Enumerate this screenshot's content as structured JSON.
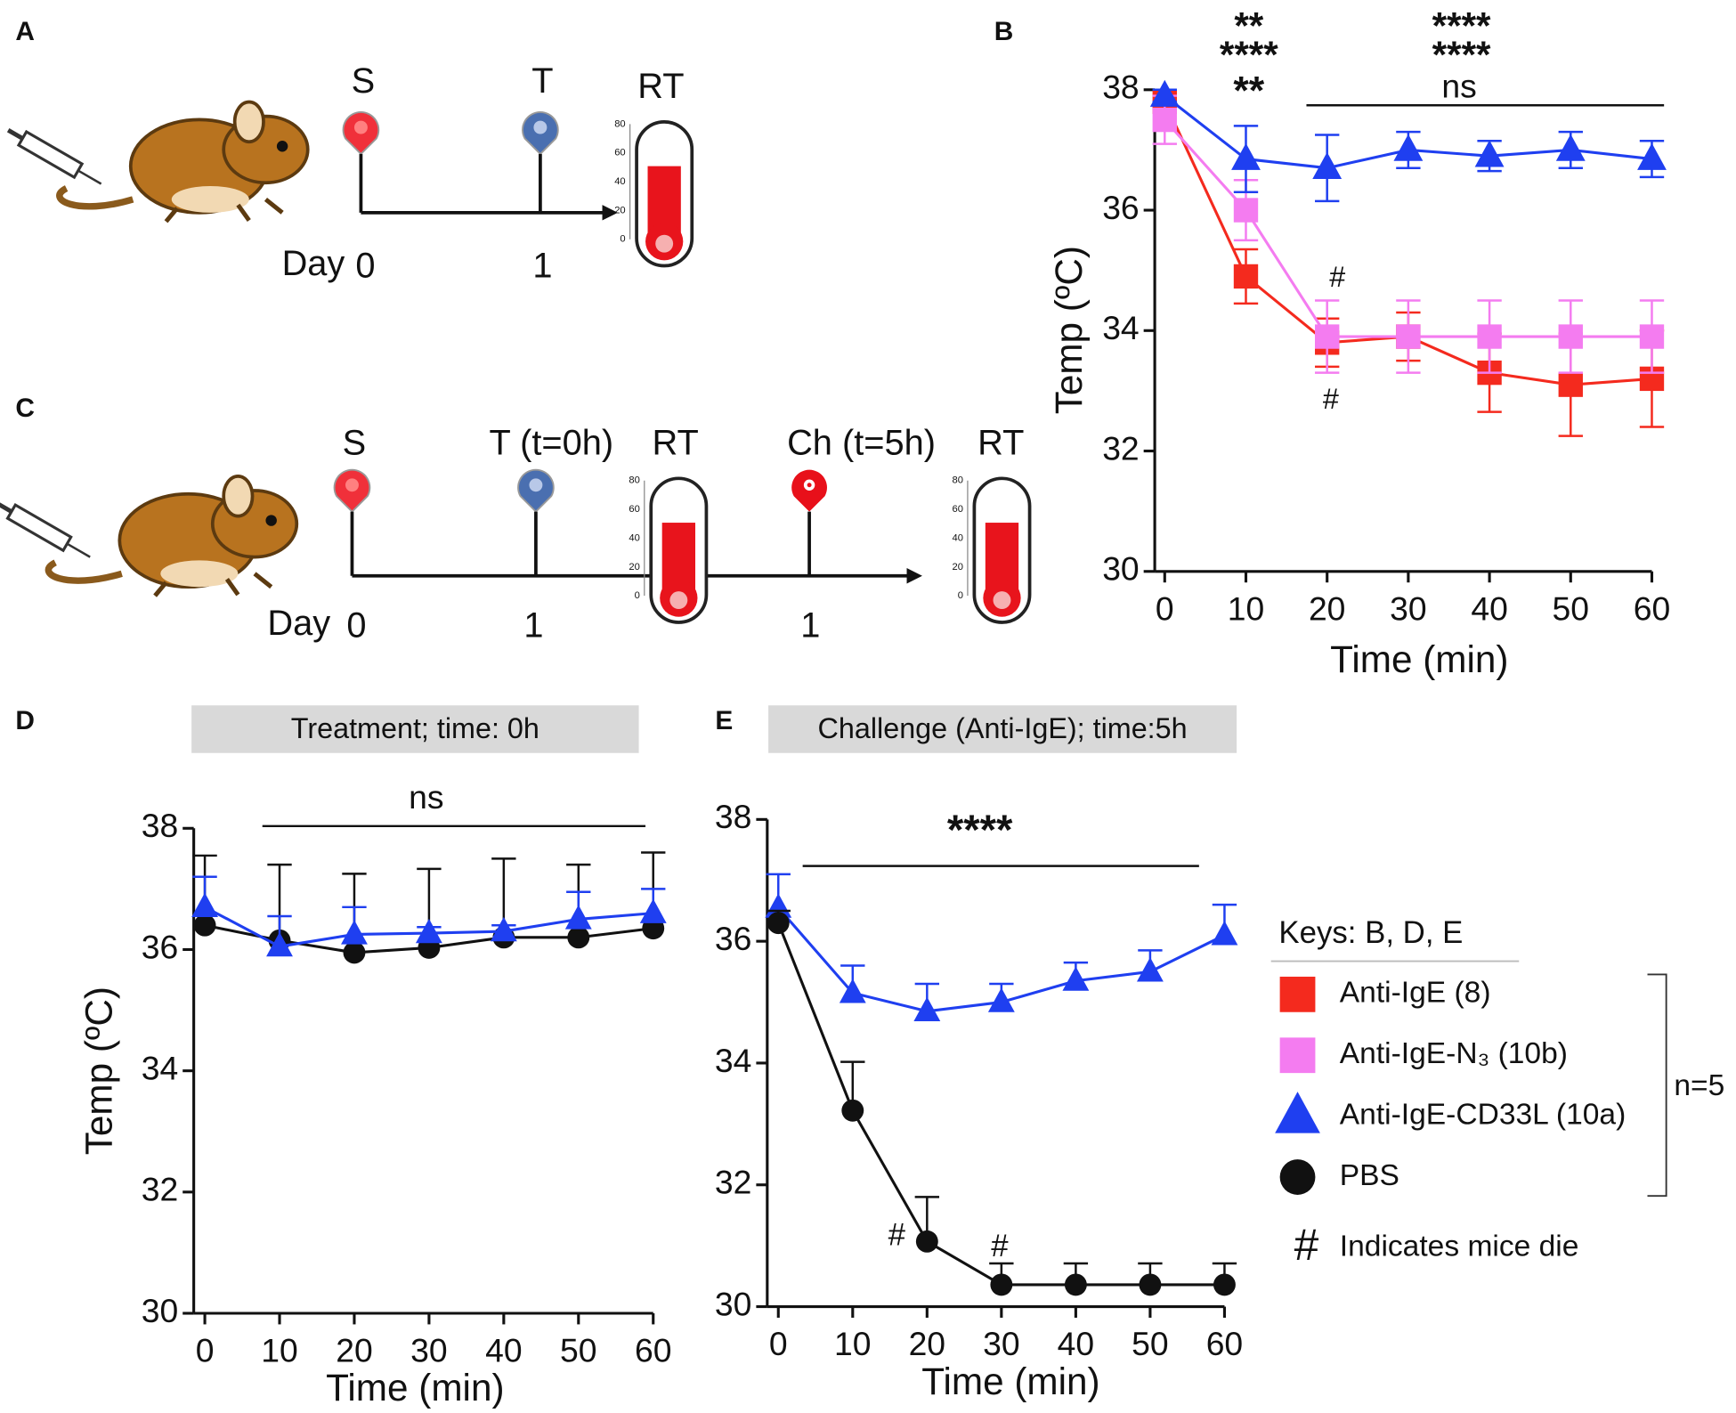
{
  "panel_labels": [
    "A",
    "B",
    "C",
    "D",
    "E"
  ],
  "schematics": {
    "a": {
      "labels": [
        "S",
        "T",
        "RT"
      ],
      "day_label": "Day",
      "days": [
        "0",
        "1"
      ]
    },
    "c": {
      "labels": [
        "S",
        "T (t=0h)",
        "RT",
        "Ch (t=5h)",
        "RT"
      ],
      "day_label": "Day",
      "days": [
        "0",
        "1",
        "1"
      ]
    },
    "thermometer_scale": [
      "80",
      "60",
      "40",
      "20",
      "0"
    ]
  },
  "legend": {
    "title": "Keys: B, D, E",
    "n_label": "n=5",
    "note_symbol": "#",
    "note": "Indicates mice die"
  },
  "chart_data": [
    {
      "type": "line",
      "x_label": "Time (min)",
      "y_label": "Temp (ºC)",
      "x": [
        0,
        10,
        20,
        30,
        40,
        50,
        60
      ],
      "xlim": [
        0,
        60
      ],
      "xticks": [
        0,
        10,
        20,
        30,
        40,
        50,
        60
      ],
      "ylim": [
        30,
        38
      ],
      "yticks": [
        30,
        32,
        34,
        36,
        38
      ],
      "error_direction": "both",
      "series": [
        {
          "name": "Anti-IgE (8)",
          "color": "#f42a1e",
          "marker": "square",
          "values": [
            37.8,
            34.9,
            33.8,
            33.9,
            33.3,
            33.1,
            33.2
          ],
          "errors": [
            0.1,
            0.45,
            0.4,
            0.4,
            0.65,
            0.85,
            0.8
          ]
        },
        {
          "name": "Anti-IgE-N₃ (10b)",
          "color": "#f47cf0",
          "marker": "square",
          "values": [
            37.5,
            36.0,
            33.9,
            33.9,
            33.9,
            33.9,
            33.9
          ],
          "errors": [
            0.4,
            0.5,
            0.6,
            0.6,
            0.6,
            0.6,
            0.6
          ]
        },
        {
          "name": "Anti-IgE-CD33L (10a)",
          "color": "#1f3ff0",
          "marker": "triangle",
          "values": [
            37.9,
            36.85,
            36.7,
            37.0,
            36.9,
            37.0,
            36.85
          ],
          "errors": [
            0.1,
            0.55,
            0.55,
            0.3,
            0.25,
            0.3,
            0.3
          ]
        }
      ],
      "annotations": [
        {
          "text": "**",
          "color": "#f42a1e"
        },
        {
          "text": "****",
          "color": "#1f3ff0"
        },
        {
          "text": "**",
          "color": "#111111"
        },
        {
          "text": "ns",
          "color": "#111111"
        },
        {
          "text": "****",
          "color": "#f42a1e"
        },
        {
          "text": "****",
          "color": "#1f3ff0"
        },
        {
          "text": "#",
          "color": "#111111"
        },
        {
          "text": "#",
          "color": "#111111"
        }
      ]
    },
    {
      "type": "line",
      "subtitle": "Treatment; time: 0h",
      "x_label": "Time (min)",
      "y_label": "Temp (ºC)",
      "x": [
        0,
        10,
        20,
        30,
        40,
        50,
        60
      ],
      "xlim": [
        0,
        60
      ],
      "xticks": [
        0,
        10,
        20,
        30,
        40,
        50,
        60
      ],
      "ylim": [
        30,
        38
      ],
      "yticks": [
        30,
        32,
        34,
        36,
        38
      ],
      "error_direction": "up",
      "series": [
        {
          "name": "PBS",
          "color": "#111111",
          "marker": "circle",
          "values": [
            36.4,
            36.15,
            35.95,
            36.03,
            36.2,
            36.2,
            36.35
          ],
          "errors": [
            1.15,
            1.25,
            1.3,
            1.3,
            1.3,
            1.2,
            1.25
          ]
        },
        {
          "name": "Anti-IgE-CD33L (10a)",
          "color": "#1f3ff0",
          "marker": "triangle",
          "values": [
            36.7,
            36.05,
            36.25,
            36.27,
            36.3,
            36.5,
            36.6
          ],
          "errors": [
            0.5,
            0.5,
            0.45,
            0.1,
            0.1,
            0.45,
            0.4
          ]
        }
      ],
      "annotations": [
        {
          "text": "ns",
          "color": "#111111"
        }
      ]
    },
    {
      "type": "line",
      "subtitle": "Challenge (Anti-IgE); time:5h",
      "x_label": "Time (min)",
      "x": [
        0,
        10,
        20,
        30,
        40,
        50,
        60
      ],
      "xlim": [
        0,
        60
      ],
      "xticks": [
        0,
        10,
        20,
        30,
        40,
        50,
        60
      ],
      "ylim": [
        30,
        38
      ],
      "yticks": [
        30,
        32,
        34,
        36,
        38
      ],
      "error_direction": "up",
      "series": [
        {
          "name": "Anti-IgE-CD33L (10a)",
          "color": "#1f3ff0",
          "marker": "triangle",
          "values": [
            36.55,
            35.15,
            34.85,
            35.0,
            35.35,
            35.5,
            36.1
          ],
          "errors": [
            0.55,
            0.45,
            0.45,
            0.3,
            0.3,
            0.35,
            0.5
          ]
        },
        {
          "name": "PBS",
          "color": "#111111",
          "marker": "circle",
          "values": [
            36.3,
            33.22,
            31.07,
            30.36,
            30.36,
            30.36,
            30.36
          ],
          "errors": [
            0.2,
            0.8,
            0.73,
            0.35,
            0.35,
            0.35,
            0.35
          ]
        }
      ],
      "annotations": [
        {
          "text": "****",
          "color": "#111111"
        },
        {
          "text": "#",
          "color": "#111111"
        },
        {
          "text": "#",
          "color": "#111111"
        }
      ]
    }
  ]
}
